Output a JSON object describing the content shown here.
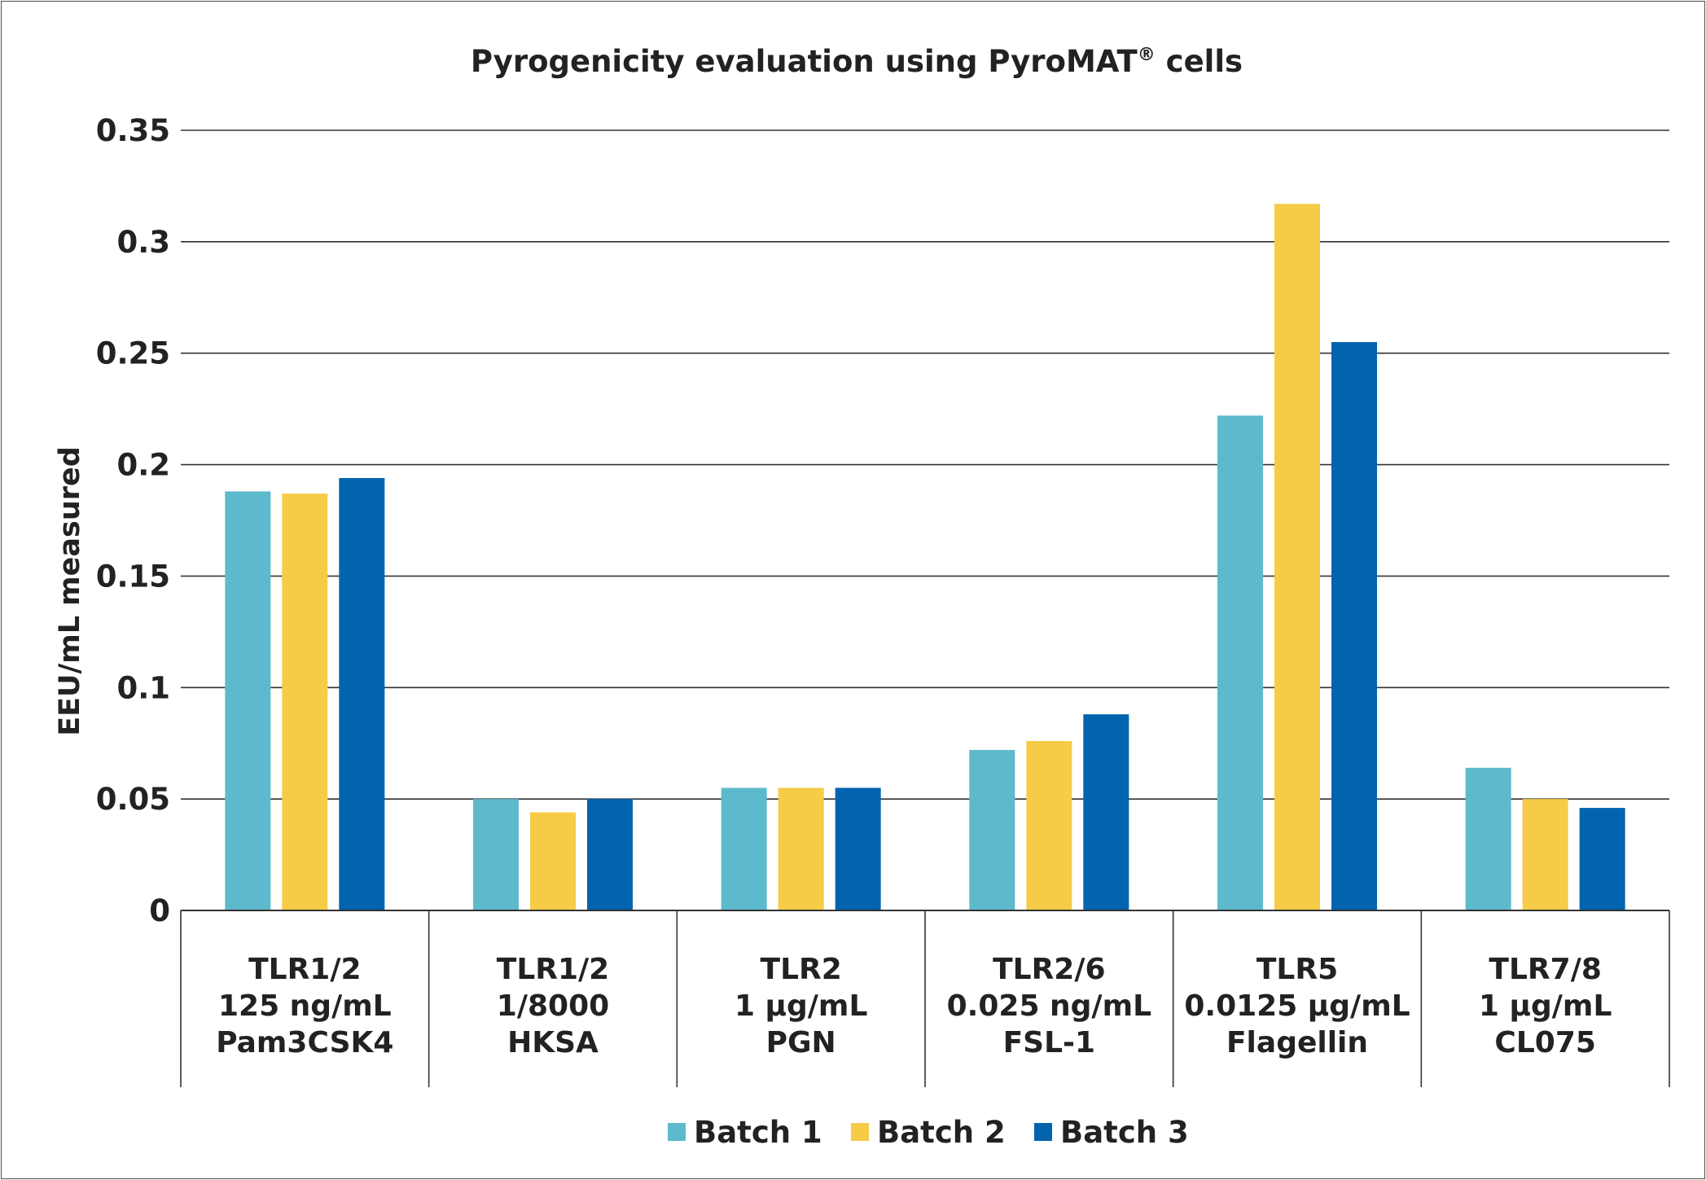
{
  "chart_data": {
    "type": "bar",
    "title": "Pyrogenicity evaluation using PyroMAT",
    "title_mark": "®",
    "title_suffix": " cells",
    "ylabel": "EEU/mL measured",
    "xlabel": "",
    "ylim": [
      0,
      0.35
    ],
    "yticks": [
      "0",
      "0.05",
      "0.1",
      "0.15",
      "0.2",
      "0.25",
      "0.3",
      "0.35"
    ],
    "grid": true,
    "legend_position": "bottom-center",
    "categories": [
      [
        "TLR1/2",
        "125 ng/mL",
        "Pam3CSK4"
      ],
      [
        "TLR1/2",
        "1/8000",
        "HKSA"
      ],
      [
        "TLR2",
        "1 µg/mL",
        "PGN"
      ],
      [
        "TLR2/6",
        "0.025 ng/mL",
        "FSL-1"
      ],
      [
        "TLR5",
        "0.0125 µg/mL",
        "Flagellin"
      ],
      [
        "TLR7/8",
        "1 µg/mL",
        "CL075"
      ]
    ],
    "series": [
      {
        "name": "Batch 1",
        "color": "#5dbacc",
        "values": [
          0.188,
          0.05,
          0.055,
          0.072,
          0.222,
          0.064
        ]
      },
      {
        "name": "Batch 2",
        "color": "#f6cb47",
        "values": [
          0.187,
          0.044,
          0.055,
          0.076,
          0.317,
          0.05
        ]
      },
      {
        "name": "Batch 3",
        "color": "#0264ae",
        "values": [
          0.194,
          0.05,
          0.055,
          0.088,
          0.255,
          0.046
        ]
      }
    ]
  }
}
